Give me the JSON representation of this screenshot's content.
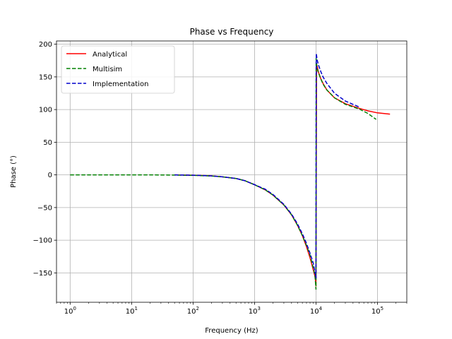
{
  "chart_data": {
    "type": "line",
    "title": "Phase vs Frequency",
    "xlabel": "Frequency (Hz)",
    "ylabel": "Phase (°)",
    "xscale": "log",
    "xlim": [
      0.6,
      300000
    ],
    "ylim": [
      -195,
      205
    ],
    "x_ticks": [
      1,
      10,
      100,
      1000,
      10000,
      100000
    ],
    "x_tick_labels": [
      {
        "base": "10",
        "exp": "0"
      },
      {
        "base": "10",
        "exp": "1"
      },
      {
        "base": "10",
        "exp": "2"
      },
      {
        "base": "10",
        "exp": "3"
      },
      {
        "base": "10",
        "exp": "4"
      },
      {
        "base": "10",
        "exp": "5"
      }
    ],
    "y_ticks": [
      -150,
      -100,
      -50,
      0,
      50,
      100,
      150,
      200
    ],
    "y_tick_labels": [
      "−150",
      "−100",
      "−50",
      "0",
      "50",
      "100",
      "150",
      "200"
    ],
    "grid": true,
    "legend_position": "top-left",
    "series": [
      {
        "name": "Analytical",
        "color": "#ff0000",
        "dash": "solid",
        "x": [
          50,
          100,
          200,
          300,
          500,
          700,
          1000,
          1500,
          2000,
          3000,
          4000,
          5000,
          6000,
          7000,
          8000,
          9000,
          9600,
          9900,
          10000,
          10200,
          10500,
          11000,
          12000,
          13000,
          15000,
          20000,
          30000,
          50000,
          70000,
          100000,
          160000
        ],
        "y": [
          0,
          -0.5,
          -1.5,
          -3,
          -5.5,
          -9,
          -15,
          -23,
          -31,
          -46,
          -61,
          -77,
          -93,
          -110,
          -127,
          -145,
          -155,
          -165,
          -170,
          170,
          165,
          157,
          147,
          140,
          130,
          118,
          109,
          102,
          98,
          95,
          93
        ]
      },
      {
        "name": "Multisim",
        "color": "#008000",
        "dash": "dashed",
        "x": [
          1,
          2,
          5,
          10,
          20,
          50,
          100,
          200,
          300,
          500,
          700,
          1000,
          1500,
          2000,
          3000,
          4000,
          5000,
          6000,
          7000,
          8000,
          9000,
          9600,
          10000,
          10050,
          10200,
          10500,
          11000,
          12000,
          13000,
          15000,
          20000,
          30000,
          50000,
          70000,
          95000
        ],
        "y": [
          0,
          0,
          0,
          0,
          0,
          -0.3,
          -0.7,
          -1.7,
          -3,
          -5.5,
          -9,
          -15,
          -23,
          -31,
          -46,
          -61,
          -77,
          -93,
          -108,
          -123,
          -142,
          -153,
          -175,
          178,
          170,
          162,
          156,
          147,
          139,
          130,
          118,
          108,
          101,
          94,
          85
        ]
      },
      {
        "name": "Implementation",
        "color": "#0000cc",
        "dash": "dashed",
        "x": [
          50,
          100,
          200,
          300,
          500,
          700,
          1000,
          1500,
          2000,
          3000,
          4000,
          5000,
          6000,
          7000,
          8000,
          9000,
          9600,
          10000,
          10100,
          10300,
          10500,
          11000,
          12000,
          13000,
          15000,
          20000,
          30000,
          50000
        ],
        "y": [
          0,
          -0.5,
          -1.5,
          -3,
          -5.5,
          -9,
          -15,
          -22,
          -30,
          -45,
          -60,
          -75,
          -90,
          -105,
          -120,
          -135,
          -148,
          -158,
          186,
          180,
          175,
          168,
          158,
          150,
          140,
          125,
          113,
          104
        ]
      }
    ]
  }
}
